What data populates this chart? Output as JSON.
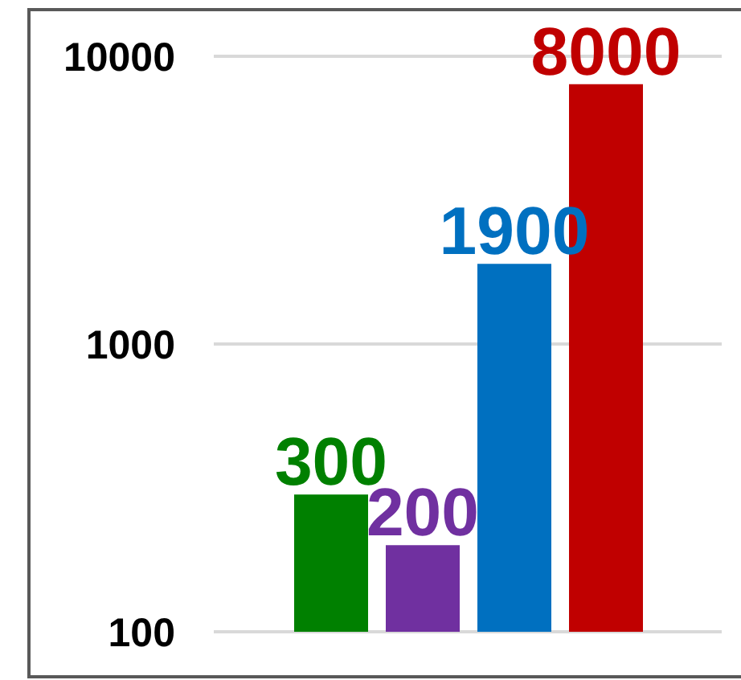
{
  "chart_data": {
    "type": "bar",
    "categories": [
      null,
      null,
      null,
      null
    ],
    "values": [
      300,
      200,
      1900,
      8000
    ],
    "colors": [
      "#008000",
      "#7030a0",
      "#0070c0",
      "#c00000"
    ],
    "log": true,
    "ylim": [
      100,
      10000
    ],
    "yticks": [
      100,
      1000,
      10000
    ],
    "grid": "y",
    "data_labels": true,
    "tick_labels": "y"
  }
}
